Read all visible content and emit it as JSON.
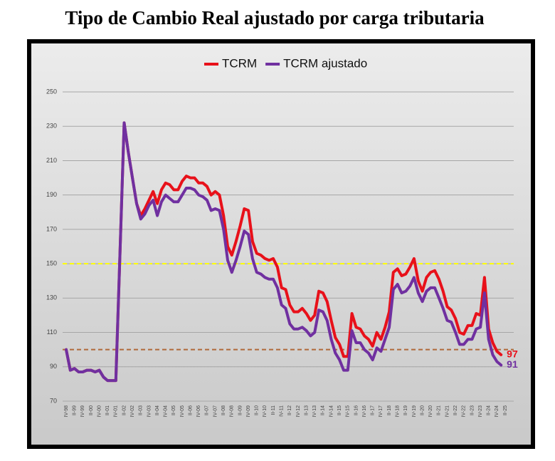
{
  "chart_data": {
    "type": "line",
    "title": "Tipo de Cambio Real ajustado por carga tributaria",
    "categories": [
      "IV-98",
      null,
      "II-99",
      null,
      "IV-99",
      null,
      "II-00",
      null,
      "IV-00",
      null,
      "II-01",
      null,
      "IV-01",
      null,
      "II-02",
      null,
      "IV-02",
      null,
      "II-03",
      null,
      "IV-03",
      null,
      "II-04",
      null,
      "IV-04",
      null,
      "II-05",
      null,
      "IV-05",
      null,
      "II-06",
      null,
      "IV-06",
      null,
      "II-07",
      null,
      "IV-07",
      null,
      "II-08",
      null,
      "IV-08",
      null,
      "II-09",
      null,
      "IV-09",
      null,
      "II-10",
      null,
      "IV-10",
      null,
      "II-11",
      null,
      "IV-11",
      null,
      "II-12",
      null,
      "IV-12",
      null,
      "II-13",
      null,
      "IV-13",
      null,
      "II-14",
      null,
      "IV-14",
      null,
      "II-15",
      null,
      "IV-15",
      null,
      "II-16",
      null,
      "IV-16",
      null,
      "II-17",
      null,
      "IV-17",
      null,
      "II-18",
      null,
      "IV-18",
      null,
      "II-19",
      null,
      "IV-19",
      null,
      "II-20",
      null,
      "IV-20",
      null,
      "II-21",
      null,
      "IV-21",
      null,
      "II-22",
      null,
      "IV-22",
      null,
      "II-23",
      null,
      "IV-23",
      null,
      "II-24",
      null,
      "IV-24",
      null,
      "II-25"
    ],
    "series": [
      {
        "name": "TCRM",
        "color": "#e8111a",
        "values": [
          100,
          88,
          89,
          87,
          87,
          88,
          88,
          87,
          88,
          84,
          82,
          82,
          82,
          157,
          232,
          215,
          200,
          185,
          178,
          182,
          187,
          192,
          185,
          193,
          197,
          196,
          193,
          193,
          198,
          201,
          200,
          200,
          197,
          197,
          195,
          190,
          192,
          190,
          178,
          160,
          155,
          163,
          172,
          182,
          181,
          163,
          156,
          155,
          153,
          152,
          153,
          148,
          136,
          135,
          126,
          122,
          122,
          124,
          121,
          117,
          120,
          134,
          133,
          128,
          117,
          107,
          103,
          96,
          96,
          121,
          113,
          112,
          108,
          106,
          102,
          110,
          106,
          113,
          122,
          145,
          147,
          143,
          144,
          148,
          153,
          140,
          134,
          142,
          145,
          146,
          141,
          134,
          125,
          123,
          118,
          110,
          109,
          114,
          114,
          121,
          120,
          142,
          112,
          104,
          99,
          97,
          null
        ]
      },
      {
        "name": "TCRM ajustado",
        "color": "#7030a0",
        "values": [
          100,
          88,
          89,
          87,
          87,
          88,
          88,
          87,
          88,
          84,
          82,
          82,
          82,
          157,
          232,
          215,
          200,
          185,
          176,
          179,
          184,
          187,
          178,
          186,
          190,
          188,
          186,
          186,
          190,
          194,
          194,
          193,
          190,
          189,
          187,
          181,
          182,
          181,
          170,
          152,
          145,
          152,
          160,
          169,
          167,
          153,
          145,
          144,
          142,
          141,
          141,
          136,
          126,
          124,
          115,
          112,
          112,
          113,
          111,
          108,
          110,
          123,
          122,
          117,
          106,
          98,
          94,
          88,
          88,
          111,
          104,
          104,
          100,
          98,
          94,
          101,
          99,
          106,
          113,
          135,
          138,
          133,
          134,
          137,
          142,
          133,
          128,
          134,
          136,
          136,
          130,
          124,
          117,
          116,
          110,
          103,
          103,
          106,
          106,
          112,
          113,
          133,
          106,
          97,
          93,
          91,
          null
        ]
      }
    ],
    "reference_lines": [
      {
        "value": 150,
        "color": "#ffff00"
      },
      {
        "value": 100,
        "color": "#b06a3a"
      }
    ],
    "ylim": [
      70,
      250
    ],
    "yticks": [
      70,
      90,
      110,
      130,
      150,
      170,
      190,
      210,
      230,
      250
    ],
    "grid": true,
    "legend": "top"
  }
}
